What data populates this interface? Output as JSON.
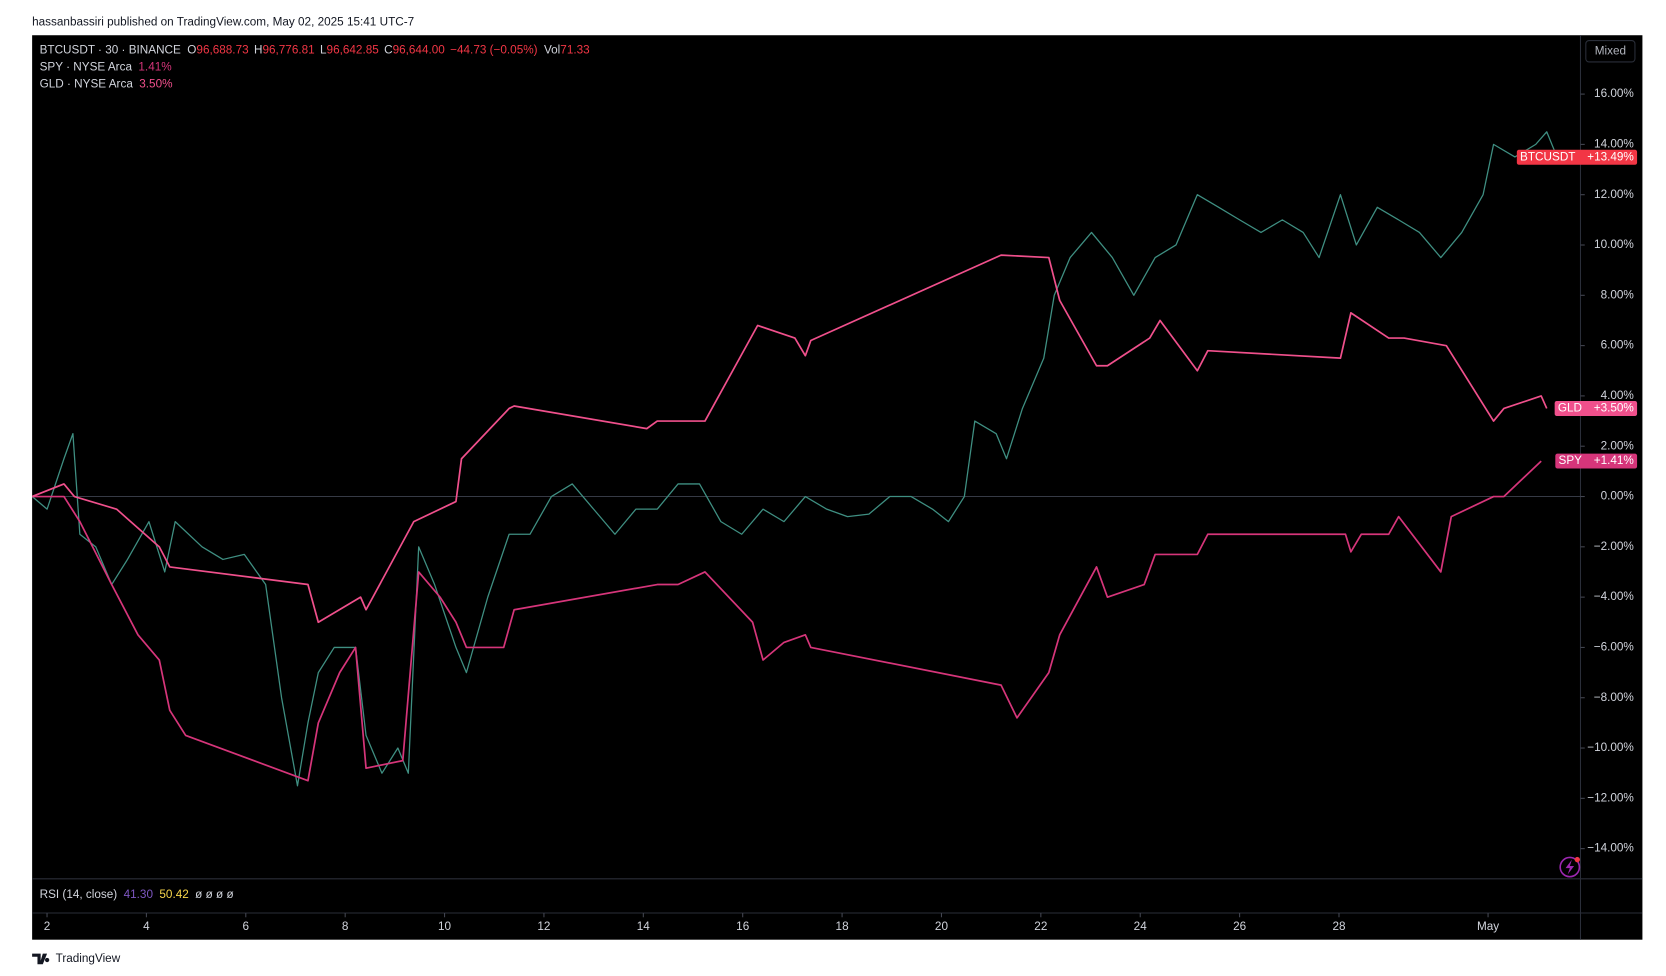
{
  "header": {
    "publisher": "hassanbassiri published on TradingView.com, May 02, 2025 15:41 UTC-7"
  },
  "footer": {
    "brand": "TradingView"
  },
  "chart_data": {
    "type": "line",
    "ohlc": [
      {
        "label": "O",
        "value": "96,688.73"
      },
      {
        "label": "H",
        "value": "96,776.81"
      },
      {
        "label": "L",
        "value": "96,642.85"
      },
      {
        "label": "C",
        "value": "96,644.00"
      }
    ],
    "change": "−44.73 (−0.05%)",
    "volume": {
      "label": "Vol",
      "value": "71.33"
    },
    "scale_mode": "Mixed",
    "xlim": [
      1.7,
      32.86
    ],
    "xticks": [
      2,
      4,
      6,
      8,
      10,
      12,
      14,
      16,
      18,
      20,
      22,
      24,
      26,
      28,
      {
        "value": 31,
        "label": "May"
      }
    ],
    "ylim": [
      -15.2,
      18.34
    ],
    "yticks": [
      {
        "value": -14,
        "label": "−14.00%"
      },
      {
        "value": -12,
        "label": "−12.00%"
      },
      {
        "value": -10,
        "label": "−10.00%"
      },
      {
        "value": -8,
        "label": "−8.00%"
      },
      {
        "value": -6,
        "label": "−6.00%"
      },
      {
        "value": -4,
        "label": "−4.00%"
      },
      {
        "value": -2,
        "label": "−2.00%"
      },
      {
        "value": 0,
        "label": "0.00%"
      },
      {
        "value": 2,
        "label": "2.00%"
      },
      {
        "value": 4,
        "label": "4.00%"
      },
      {
        "value": 6,
        "label": "6.00%"
      },
      {
        "value": 8,
        "label": "8.00%"
      },
      {
        "value": 10,
        "label": "10.00%"
      },
      {
        "value": 12,
        "label": "12.00%"
      },
      {
        "value": 14,
        "label": "14.00%"
      },
      {
        "value": 16,
        "label": "16.00%"
      }
    ],
    "baseline": 0,
    "series": [
      {
        "name": "BTCUSDT",
        "legend": "BTCUSDT · 30 · BINANCE",
        "color": "#3f8f82",
        "tag_color": "#f23645",
        "last_label": "+13.49%",
        "x": [
          1.7,
          2.0,
          2.34,
          2.52,
          2.66,
          2.98,
          3.3,
          3.62,
          4.05,
          4.37,
          4.58,
          5.12,
          5.54,
          5.97,
          6.4,
          6.72,
          7.04,
          7.25,
          7.46,
          7.78,
          8.21,
          8.42,
          8.74,
          9.06,
          9.27,
          9.48,
          9.8,
          10.23,
          10.44,
          10.87,
          11.3,
          11.72,
          12.15,
          12.57,
          13.0,
          13.43,
          13.85,
          14.28,
          14.7,
          15.13,
          15.56,
          15.98,
          16.41,
          16.83,
          17.26,
          17.69,
          18.11,
          18.54,
          18.96,
          19.39,
          19.82,
          20.14,
          20.46,
          20.67,
          21.1,
          21.31,
          21.63,
          22.06,
          22.27,
          22.59,
          23.02,
          23.44,
          23.87,
          24.3,
          24.72,
          25.15,
          25.58,
          26.0,
          26.43,
          26.86,
          27.28,
          27.6,
          28.03,
          28.35,
          28.77,
          29.2,
          29.62,
          30.05,
          30.47,
          30.9,
          31.11,
          31.54,
          31.96,
          32.18,
          32.39
        ],
        "values": [
          0,
          -0.5,
          1.5,
          2.5,
          -1.5,
          -2,
          -3.5,
          -2.5,
          -1,
          -3,
          -1,
          -2,
          -2.5,
          -2.3,
          -3.5,
          -8,
          -11.5,
          -9,
          -7,
          -6,
          -6,
          -9.5,
          -11,
          -10,
          -11,
          -2,
          -3.5,
          -6,
          -7,
          -4,
          -1.5,
          -1.5,
          0,
          0.5,
          -0.5,
          -1.5,
          -0.5,
          -0.5,
          0.5,
          0.5,
          -1,
          -1.5,
          -0.5,
          -1,
          0,
          -0.5,
          -0.8,
          -0.7,
          0,
          0,
          -0.5,
          -1,
          0,
          3,
          2.5,
          1.5,
          3.5,
          5.5,
          8,
          9.5,
          10.5,
          9.5,
          8,
          9.5,
          10,
          12,
          11.5,
          11,
          10.5,
          11,
          10.5,
          9.5,
          12,
          10,
          11.5,
          11,
          10.5,
          9.5,
          10.5,
          12,
          14,
          13.5,
          14,
          14.5,
          13.49
        ]
      },
      {
        "name": "SPY",
        "legend": "SPY · NYSE Arca",
        "legend_value": "1.41%",
        "color": "#d6357a",
        "tag_color": "#d6357a",
        "last_label": "+1.41%",
        "x": [
          1.7,
          2.34,
          2.66,
          3.3,
          3.83,
          4.26,
          4.47,
          4.79,
          7.25,
          7.46,
          7.89,
          8.21,
          8.42,
          9.16,
          9.48,
          9.91,
          10.23,
          10.44,
          11.19,
          11.4,
          14.28,
          14.7,
          15.24,
          16.2,
          16.41,
          16.83,
          17.26,
          17.37,
          21.2,
          21.52,
          22.16,
          22.38,
          23.12,
          23.34,
          24.08,
          24.3,
          25.15,
          25.36,
          28.13,
          28.24,
          28.45,
          29.0,
          29.2,
          30.05,
          30.26,
          31.11,
          31.32,
          32.07
        ],
        "values": [
          0,
          0,
          -1,
          -3.5,
          -5.5,
          -6.5,
          -8.5,
          -9.5,
          -11.3,
          -9,
          -7,
          -6,
          -10.8,
          -10.5,
          -3,
          -4,
          -5,
          -6,
          -6,
          -4.5,
          -3.5,
          -3.5,
          -3,
          -5,
          -6.5,
          -5.8,
          -5.5,
          -6,
          -7.5,
          -8.8,
          -7,
          -5.5,
          -2.8,
          -4,
          -3.5,
          -2.3,
          -2.3,
          -1.5,
          -1.5,
          -2.2,
          -1.5,
          -1.5,
          -0.8,
          -3,
          -0.8,
          0,
          0,
          1.41
        ]
      },
      {
        "name": "GLD",
        "legend": "GLD · NYSE Arca",
        "legend_value": "3.50%",
        "color": "#f0508c",
        "tag_color": "#f0508c",
        "last_label": "+3.50%",
        "x": [
          1.7,
          2.34,
          2.55,
          3.4,
          4.26,
          4.47,
          7.25,
          7.46,
          8.31,
          8.42,
          9.38,
          10.23,
          10.34,
          11.3,
          11.4,
          14.07,
          14.28,
          15.24,
          16.3,
          17.05,
          17.26,
          17.37,
          21.2,
          22.16,
          22.38,
          23.12,
          23.34,
          24.19,
          24.4,
          25.15,
          25.36,
          28.03,
          28.24,
          29.0,
          29.31,
          30.16,
          31.11,
          31.32,
          32.07,
          32.18
        ],
        "values": [
          0,
          0.5,
          0,
          -0.5,
          -2,
          -2.8,
          -3.5,
          -5,
          -4,
          -4.5,
          -1,
          -0.2,
          1.5,
          3.5,
          3.6,
          2.7,
          3,
          3,
          6.8,
          6.3,
          5.6,
          6.2,
          9.6,
          9.5,
          7.8,
          5.2,
          5.2,
          6.3,
          7,
          5,
          5.8,
          5.5,
          7.3,
          6.3,
          6.3,
          6,
          3,
          3.5,
          4,
          3.5
        ]
      }
    ],
    "rsi": {
      "label": "RSI (14, close)",
      "readouts": [
        "41.30",
        "50.42"
      ],
      "readout_colors": [
        "#7e57c2",
        "#f7d54a"
      ],
      "empty": "ø ø ø ø"
    }
  }
}
